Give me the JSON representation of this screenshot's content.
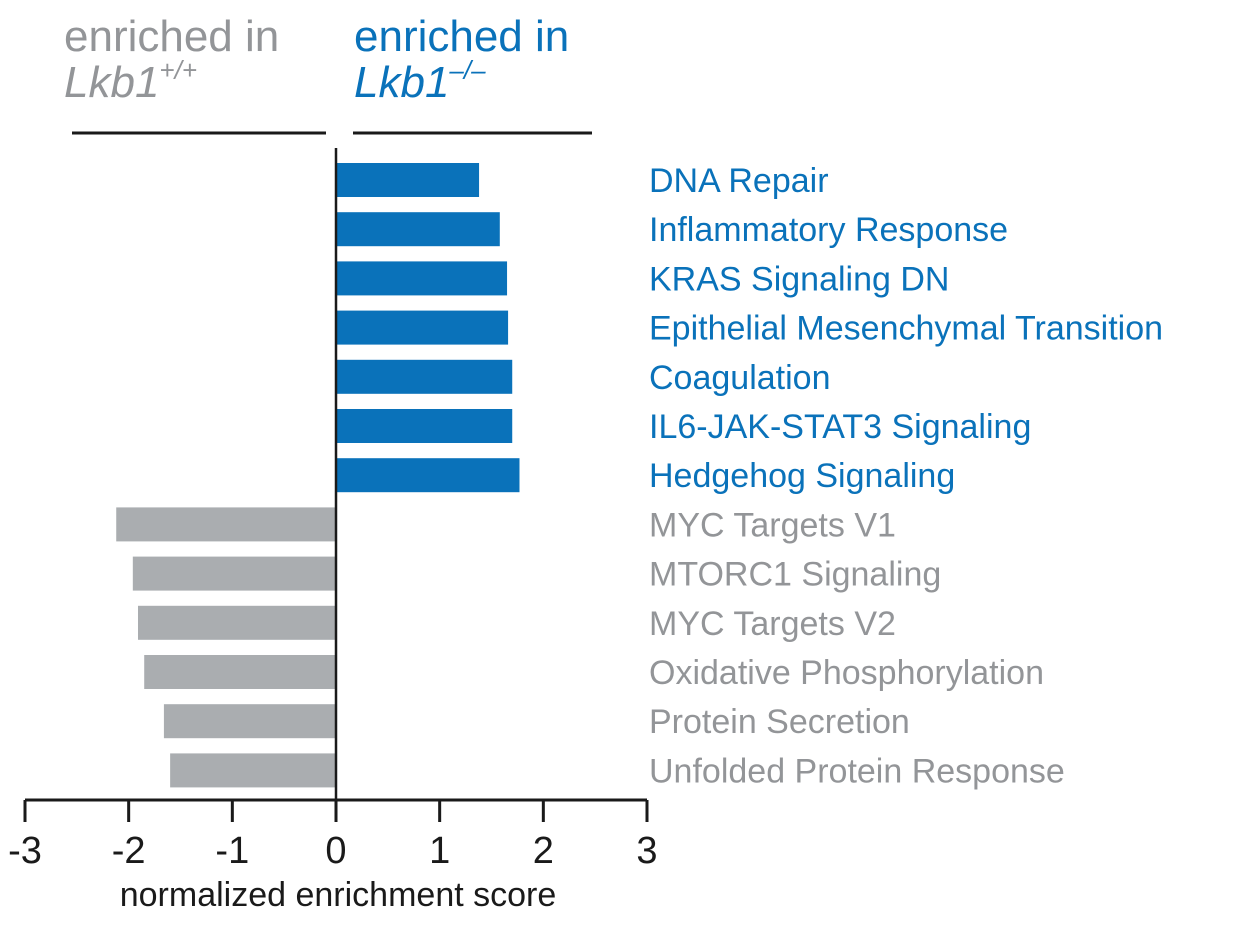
{
  "chart_data": {
    "type": "bar",
    "orientation": "horizontal",
    "header_left": {
      "line1": "enriched in",
      "gene": "Lkb1",
      "superscript": "+/+"
    },
    "header_right": {
      "line1": "enriched in",
      "gene": "Lkb1",
      "superscript": "–/–"
    },
    "categories": [
      "DNA Repair",
      "Inflammatory Response",
      "KRAS Signaling DN",
      "Epithelial Mesenchymal Transition",
      "Coagulation",
      "IL6-JAK-STAT3 Signaling",
      "Hedgehog Signaling",
      "MYC Targets V1",
      "MTORC1 Signaling",
      "MYC Targets V2",
      "Oxidative Phosphorylation",
      "Protein Secretion",
      "Unfolded Protein Response"
    ],
    "values": [
      1.38,
      1.58,
      1.65,
      1.66,
      1.7,
      1.7,
      1.77,
      -2.12,
      -1.96,
      -1.91,
      -1.85,
      -1.66,
      -1.6
    ],
    "xlabel": "normalized enrichment score",
    "xlim": [
      -3,
      3
    ],
    "xticks": [
      "-3",
      "-2",
      "-1",
      "0",
      "1",
      "2",
      "3"
    ],
    "grid": false,
    "colors": {
      "positive": "#0a72ba",
      "negative": "#aaadb0",
      "axis": "#1a1a1a"
    }
  }
}
